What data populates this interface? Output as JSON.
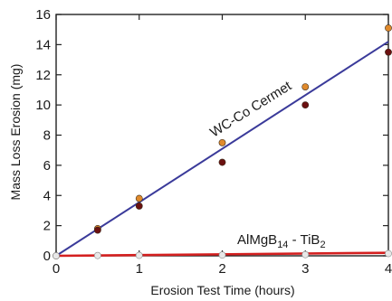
{
  "chart_data": {
    "type": "scatter",
    "xlabel": "Erosion Test Time (hours)",
    "ylabel": "Mass Loss Erosion (mg)",
    "xlim": [
      0,
      4
    ],
    "ylim": [
      0,
      16
    ],
    "xticks": [
      0,
      1,
      2,
      3,
      4
    ],
    "yticks": [
      0,
      2,
      4,
      6,
      8,
      10,
      12,
      14,
      16
    ],
    "grid": false,
    "series": [
      {
        "name": "WC-Co Cermet",
        "color": "#e08a2c",
        "points": [
          [
            0,
            0
          ],
          [
            0.5,
            1.8
          ],
          [
            1,
            3.8
          ],
          [
            2,
            7.5
          ],
          [
            3,
            11.2
          ],
          [
            4,
            15.1
          ]
        ]
      },
      {
        "name": "WC-Co Cermet",
        "color": "#6b1010",
        "points": [
          [
            0.5,
            1.7
          ],
          [
            1,
            3.3
          ],
          [
            2,
            6.2
          ],
          [
            3,
            10.0
          ],
          [
            4,
            13.5
          ]
        ]
      },
      {
        "name": "AlMgB14 - TiB2",
        "color": "#e8e8e8",
        "points": [
          [
            0,
            0
          ],
          [
            0.5,
            0.02
          ],
          [
            1,
            0.03
          ],
          [
            2,
            0.05
          ],
          [
            3,
            0.08
          ],
          [
            4,
            0.15
          ]
        ]
      }
    ],
    "fits": [
      {
        "name": "WC-Co Cermet",
        "color": "#3a3a9a",
        "x": [
          0,
          4
        ],
        "y": [
          0,
          14.2
        ]
      },
      {
        "name": "AlMgB14 - TiB2",
        "color": "#d42020",
        "x": [
          0,
          4
        ],
        "y": [
          0,
          0.2
        ]
      }
    ],
    "annotations": {
      "wcco": "WC-Co Cermet",
      "boride_main": "AlMgB",
      "boride_sub1": "14",
      "boride_mid": " - TiB",
      "boride_sub2": "2"
    }
  }
}
